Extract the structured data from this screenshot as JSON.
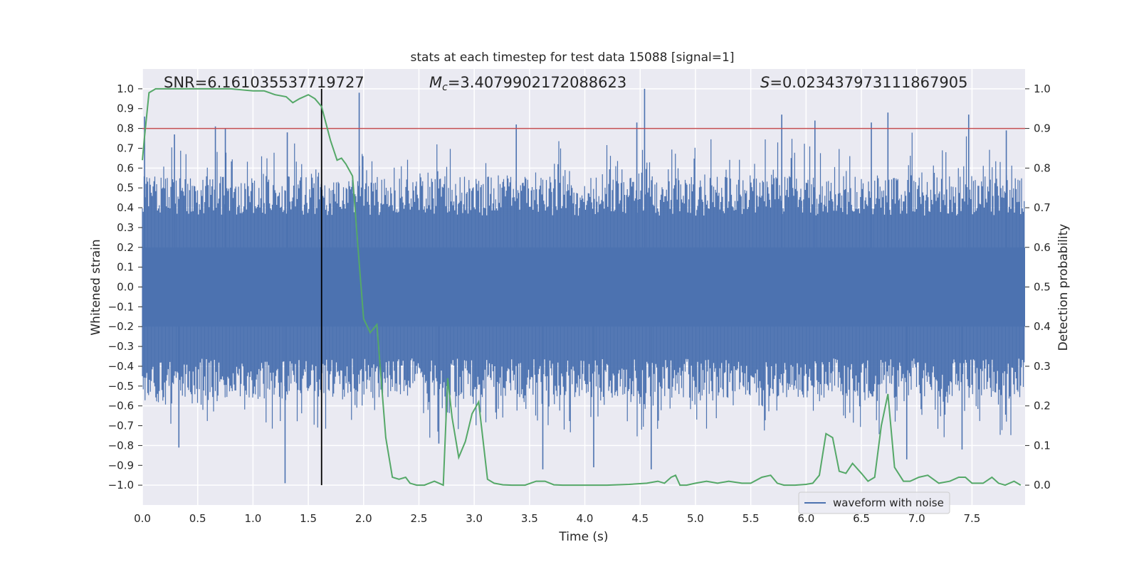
{
  "chart_data": {
    "type": "line",
    "title": "stats at each timestep for test data 15088 [signal=1]",
    "xlabel": "Time (s)",
    "ylabel": "Whitened strain",
    "y2label": "Detection probability",
    "xlim": [
      0.0,
      7.98
    ],
    "ylim": [
      -1.1,
      1.1
    ],
    "y2lim": [
      -0.05,
      1.05
    ],
    "grid": true,
    "legend_position": "lower-right",
    "annotations": {
      "snr": "SNR=6.161035537719727",
      "mc_symbol": "M",
      "mc_sub": "c",
      "mc_value": "=3.4079902172088623",
      "s_symbol": "S",
      "s_value": "=0.023437973111867905"
    },
    "x_ticks": [
      "0.0",
      "0.5",
      "1.0",
      "1.5",
      "2.0",
      "2.5",
      "3.0",
      "3.5",
      "4.0",
      "4.5",
      "5.0",
      "5.5",
      "6.0",
      "6.5",
      "7.0",
      "7.5"
    ],
    "x_tick_values": [
      0.0,
      0.5,
      1.0,
      1.5,
      2.0,
      2.5,
      3.0,
      3.5,
      4.0,
      4.5,
      5.0,
      5.5,
      6.0,
      6.5,
      7.0,
      7.5
    ],
    "y_ticks": [
      "1.0",
      "0.9",
      "0.8",
      "0.7",
      "0.6",
      "0.5",
      "0.4",
      "0.3",
      "0.2",
      "0.1",
      "0.0",
      "−0.1",
      "−0.2",
      "−0.3",
      "−0.4",
      "−0.5",
      "−0.6",
      "−0.7",
      "−0.8",
      "−0.9",
      "−1.0"
    ],
    "y_tick_values": [
      1.0,
      0.9,
      0.8,
      0.7,
      0.6,
      0.5,
      0.4,
      0.3,
      0.2,
      0.1,
      0.0,
      -0.1,
      -0.2,
      -0.3,
      -0.4,
      -0.5,
      -0.6,
      -0.7,
      -0.8,
      -0.9,
      -1.0
    ],
    "y2_ticks": [
      "1.0",
      "0.9",
      "0.8",
      "0.7",
      "0.6",
      "0.5",
      "0.4",
      "0.3",
      "0.2",
      "0.1",
      "0.0"
    ],
    "y2_tick_values": [
      1.0,
      0.9,
      0.8,
      0.7,
      0.6,
      0.5,
      0.4,
      0.3,
      0.2,
      0.1,
      0.0
    ],
    "threshold": {
      "y2": 0.9,
      "color": "#c44e52"
    },
    "event_marker": {
      "x": 1.62,
      "y_range": [
        -1.0,
        1.0
      ],
      "color": "#000000"
    },
    "series": [
      {
        "name": "waveform with noise",
        "color": "#4c72b0",
        "peaks": [
          {
            "x": 0.02,
            "y": 0.86
          },
          {
            "x": 0.29,
            "y": 0.77
          },
          {
            "x": 0.33,
            "y": -0.81
          },
          {
            "x": 0.66,
            "y": 0.81
          },
          {
            "x": 0.75,
            "y": 0.8
          },
          {
            "x": 1.29,
            "y": -0.99
          },
          {
            "x": 1.31,
            "y": 0.78
          },
          {
            "x": 1.96,
            "y": 0.98
          },
          {
            "x": 2.68,
            "y": -0.79
          },
          {
            "x": 3.38,
            "y": 0.82
          },
          {
            "x": 3.62,
            "y": -0.92
          },
          {
            "x": 4.08,
            "y": -0.91
          },
          {
            "x": 4.47,
            "y": 0.83
          },
          {
            "x": 4.54,
            "y": 1.0
          },
          {
            "x": 4.6,
            "y": -0.92
          },
          {
            "x": 5.78,
            "y": 0.87
          },
          {
            "x": 6.08,
            "y": 0.84
          },
          {
            "x": 6.59,
            "y": 0.83
          },
          {
            "x": 6.74,
            "y": 0.88
          },
          {
            "x": 6.91,
            "y": -0.87
          },
          {
            "x": 7.41,
            "y": -0.82
          },
          {
            "x": 7.47,
            "y": 0.87
          },
          {
            "x": 7.81,
            "y": 0.79
          }
        ]
      },
      {
        "name": "",
        "color": "#55a868",
        "axis": "right",
        "x": [
          0.0,
          0.02,
          0.06,
          0.12,
          0.2,
          0.4,
          0.6,
          0.8,
          1.0,
          1.1,
          1.2,
          1.3,
          1.36,
          1.42,
          1.5,
          1.56,
          1.62,
          1.7,
          1.76,
          1.8,
          1.84,
          1.9,
          1.96,
          2.0,
          2.06,
          2.12,
          2.2,
          2.26,
          2.32,
          2.38,
          2.42,
          2.48,
          2.55,
          2.64,
          2.72,
          2.76,
          2.8,
          2.86,
          2.92,
          2.98,
          3.04,
          3.12,
          3.18,
          3.26,
          3.34,
          3.46,
          3.56,
          3.64,
          3.72,
          3.8,
          3.88,
          3.96,
          4.06,
          4.2,
          4.4,
          4.56,
          4.66,
          4.72,
          4.78,
          4.82,
          4.86,
          4.92,
          5.0,
          5.1,
          5.2,
          5.3,
          5.42,
          5.5,
          5.6,
          5.68,
          5.74,
          5.8,
          5.9,
          6.0,
          6.06,
          6.12,
          6.18,
          6.24,
          6.3,
          6.36,
          6.42,
          6.5,
          6.56,
          6.62,
          6.68,
          6.74,
          6.8,
          6.88,
          6.94,
          7.02,
          7.1,
          7.2,
          7.3,
          7.38,
          7.44,
          7.5,
          7.6,
          7.68,
          7.74,
          7.8,
          7.88,
          7.94
        ],
        "y": [
          0.82,
          0.88,
          0.99,
          1.0,
          1.0,
          1.0,
          1.0,
          1.0,
          0.995,
          0.995,
          0.985,
          0.98,
          0.965,
          0.975,
          0.985,
          0.975,
          0.955,
          0.87,
          0.82,
          0.825,
          0.81,
          0.78,
          0.56,
          0.42,
          0.385,
          0.405,
          0.12,
          0.02,
          0.015,
          0.02,
          0.005,
          0.0,
          0.0,
          0.01,
          0.0,
          0.27,
          0.17,
          0.07,
          0.11,
          0.18,
          0.21,
          0.015,
          0.005,
          0.001,
          0.0,
          0.0,
          0.01,
          0.01,
          0.001,
          0.0,
          0.0,
          0.0,
          0.0,
          0.0,
          0.002,
          0.005,
          0.01,
          0.005,
          0.02,
          0.025,
          0.0,
          0.0,
          0.005,
          0.01,
          0.005,
          0.01,
          0.005,
          0.005,
          0.02,
          0.025,
          0.005,
          0.0,
          0.0,
          0.002,
          0.005,
          0.025,
          0.13,
          0.12,
          0.035,
          0.03,
          0.055,
          0.03,
          0.01,
          0.02,
          0.15,
          0.23,
          0.045,
          0.01,
          0.01,
          0.02,
          0.025,
          0.005,
          0.01,
          0.02,
          0.02,
          0.005,
          0.005,
          0.02,
          0.005,
          0.0,
          0.01,
          0.0
        ]
      }
    ]
  }
}
